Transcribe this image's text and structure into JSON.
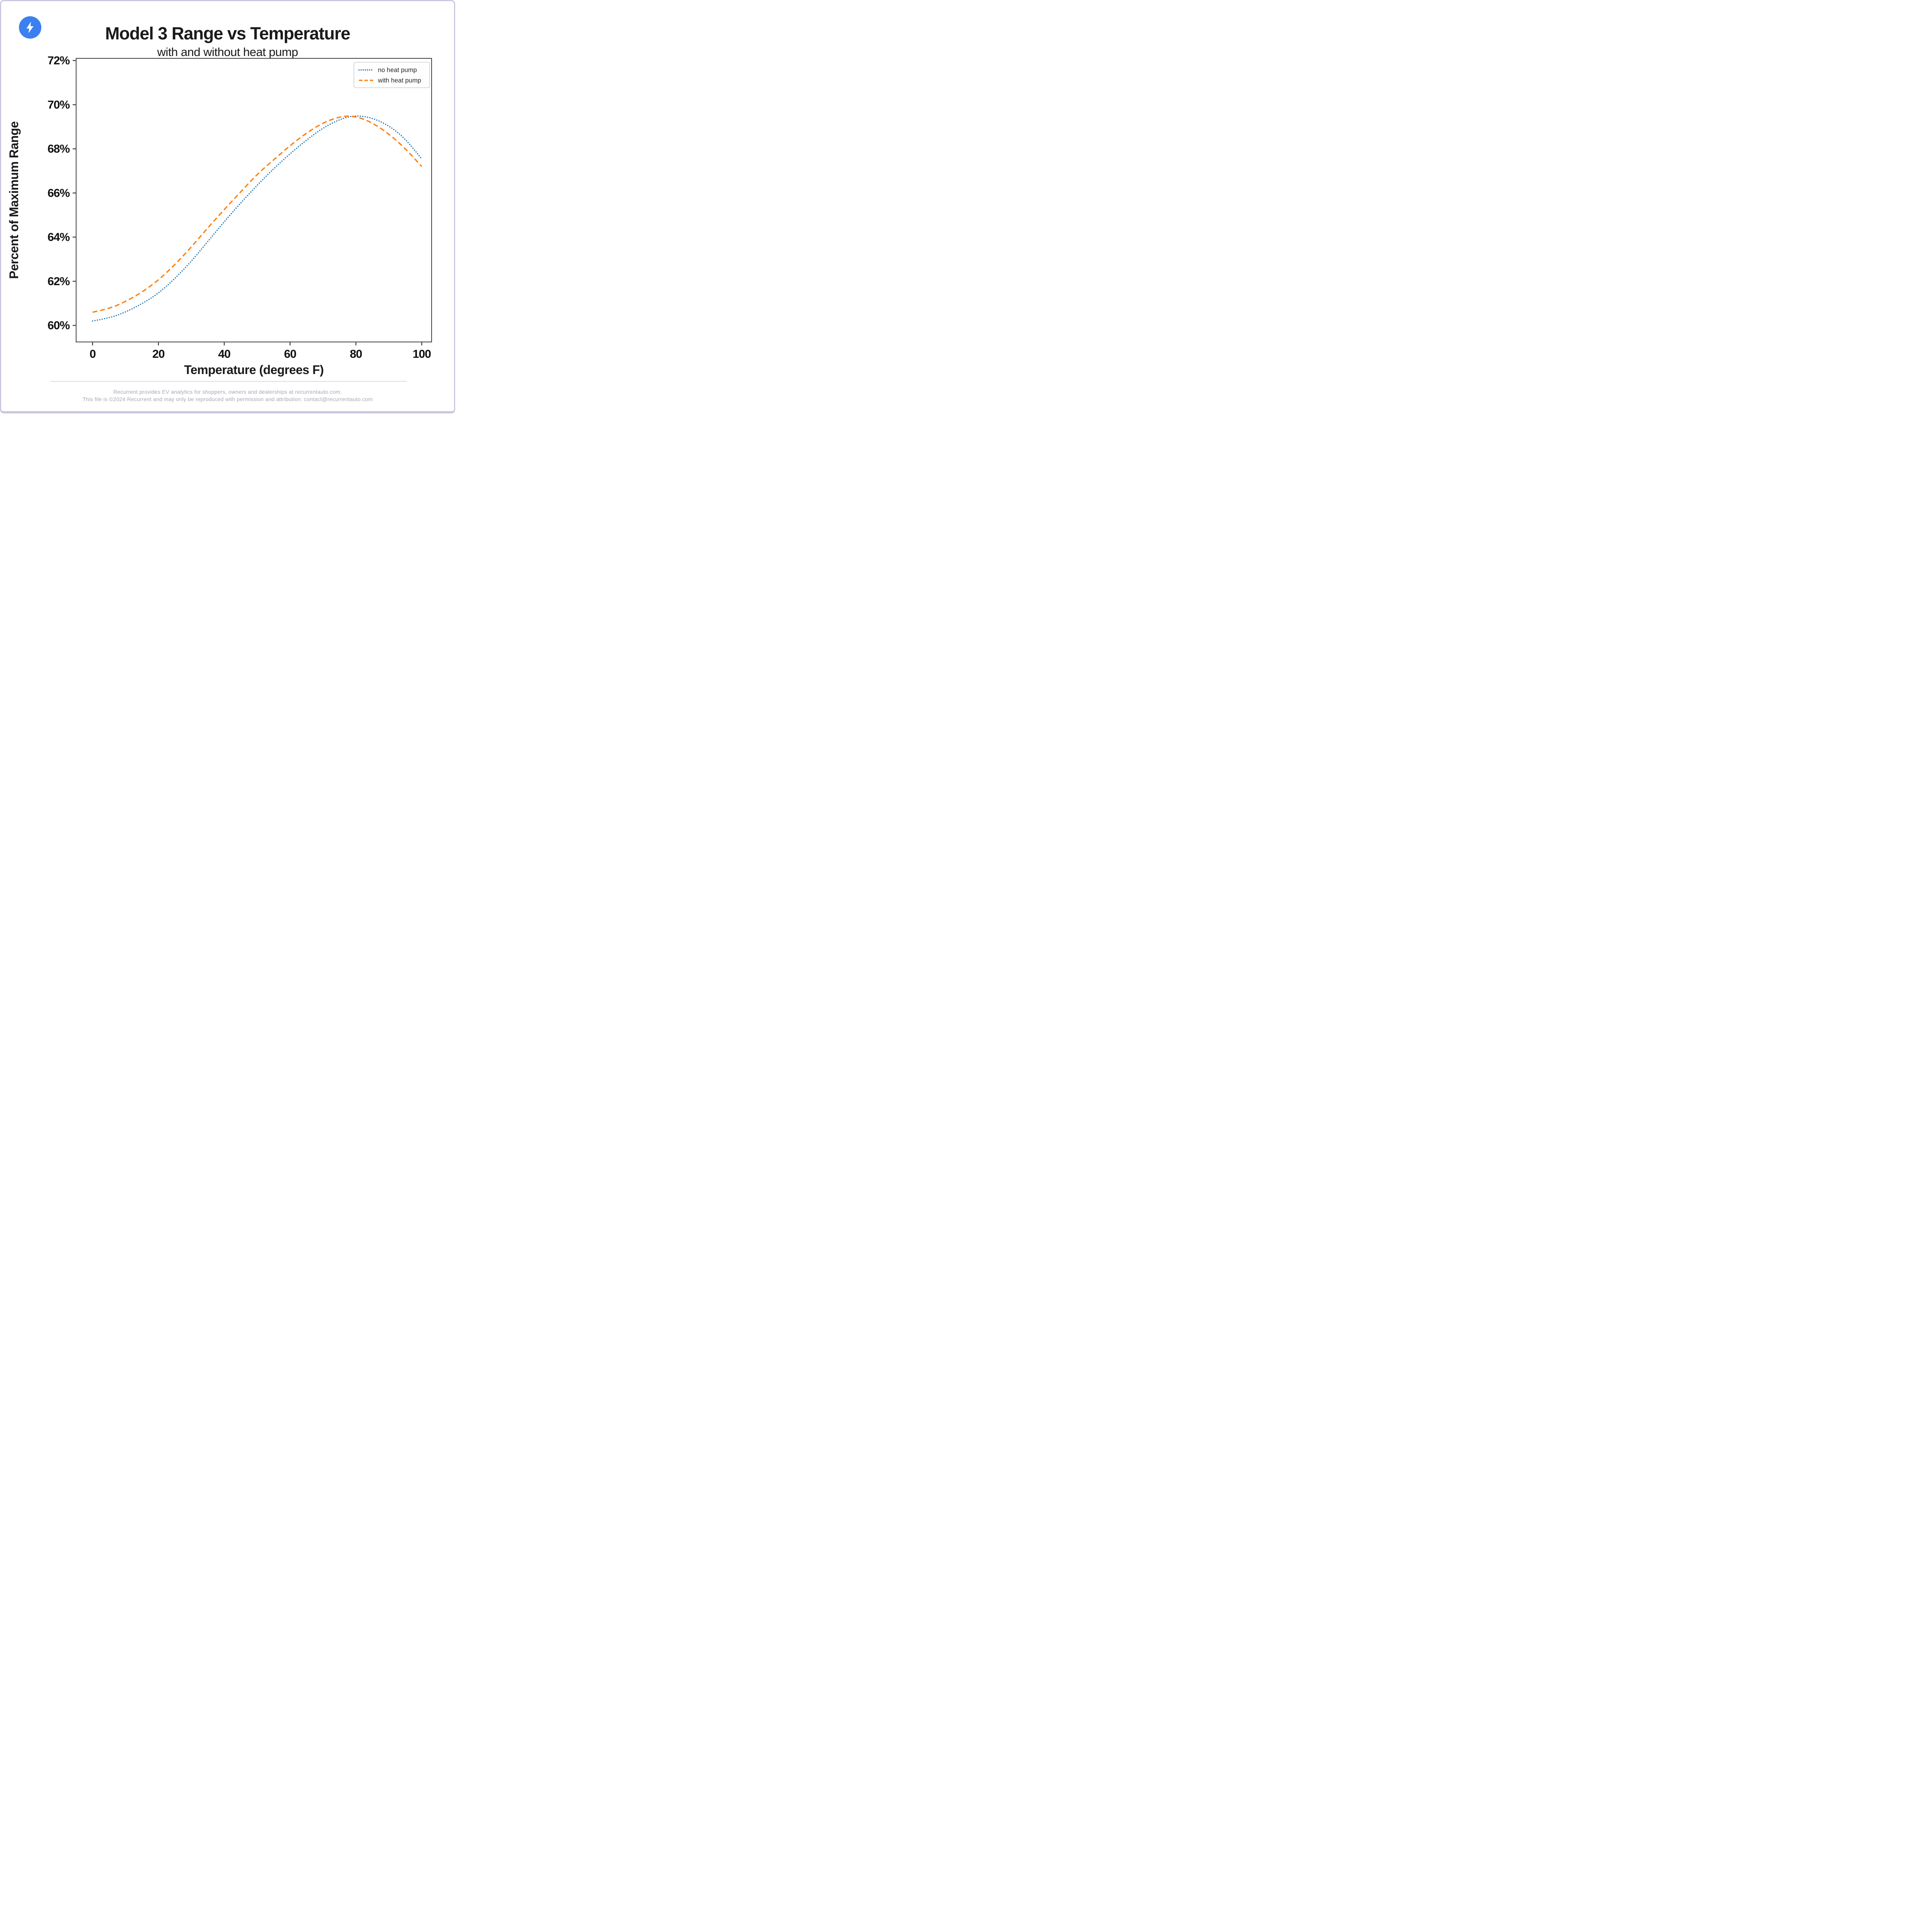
{
  "page": {
    "border_color": "#c9c8e2",
    "background_color": "#ffffff"
  },
  "logo": {
    "icon": "lightning-bolt-icon",
    "circle_color": "#3b80f0",
    "bolt_color": "#ffffff"
  },
  "header": {
    "title": "Model 3 Range vs Temperature",
    "subtitle": "with and without heat pump"
  },
  "chart_data": {
    "type": "line",
    "title": "Model 3 Range vs Temperature",
    "subtitle": "with and without heat pump",
    "xlabel": "Temperature (degrees F)",
    "ylabel": "Percent of Maximum Range",
    "xlim": [
      -5,
      103
    ],
    "ylim": [
      59.25,
      72.1
    ],
    "x_ticks": [
      0,
      20,
      40,
      60,
      80,
      100
    ],
    "y_ticks": [
      60,
      62,
      64,
      66,
      68,
      70,
      72
    ],
    "y_tick_suffix": "%",
    "grid": false,
    "legend_position": "top-right",
    "axis_color": "#3f3f44",
    "tick_label_color": "#111111",
    "series": [
      {
        "name": "no heat pump",
        "color": "#1f77b4",
        "style": "dotted",
        "points": [
          [
            0,
            60.2
          ],
          [
            5,
            60.33
          ],
          [
            10,
            60.6
          ],
          [
            15,
            60.98
          ],
          [
            20,
            61.45
          ],
          [
            25,
            62.12
          ],
          [
            30,
            62.9
          ],
          [
            35,
            63.8
          ],
          [
            40,
            64.7
          ],
          [
            45,
            65.55
          ],
          [
            50,
            66.35
          ],
          [
            55,
            67.1
          ],
          [
            60,
            67.78
          ],
          [
            65,
            68.4
          ],
          [
            70,
            68.95
          ],
          [
            75,
            69.33
          ],
          [
            79,
            69.5
          ],
          [
            83,
            69.47
          ],
          [
            87,
            69.28
          ],
          [
            91,
            68.95
          ],
          [
            95,
            68.45
          ],
          [
            100,
            67.55
          ]
        ]
      },
      {
        "name": "with heat pump",
        "color": "#ff7f0e",
        "style": "dashed",
        "points": [
          [
            0,
            60.6
          ],
          [
            5,
            60.75
          ],
          [
            10,
            61.08
          ],
          [
            15,
            61.5
          ],
          [
            20,
            62.05
          ],
          [
            25,
            62.75
          ],
          [
            30,
            63.55
          ],
          [
            35,
            64.42
          ],
          [
            40,
            65.25
          ],
          [
            45,
            66.05
          ],
          [
            50,
            66.85
          ],
          [
            55,
            67.5
          ],
          [
            60,
            68.15
          ],
          [
            65,
            68.72
          ],
          [
            70,
            69.18
          ],
          [
            74,
            69.4
          ],
          [
            77,
            69.5
          ],
          [
            81,
            69.43
          ],
          [
            85,
            69.18
          ],
          [
            90,
            68.68
          ],
          [
            95,
            68.02
          ],
          [
            100,
            67.2
          ]
        ]
      }
    ]
  },
  "footer": {
    "line1": "Recurrent provides EV analytics for shoppers, owners and dealerships at recurrentauto.com.",
    "line2": "This file is ©2024 Recurrent and may only be reproduced with permission and attribution: contact@recurrentauto.com"
  }
}
